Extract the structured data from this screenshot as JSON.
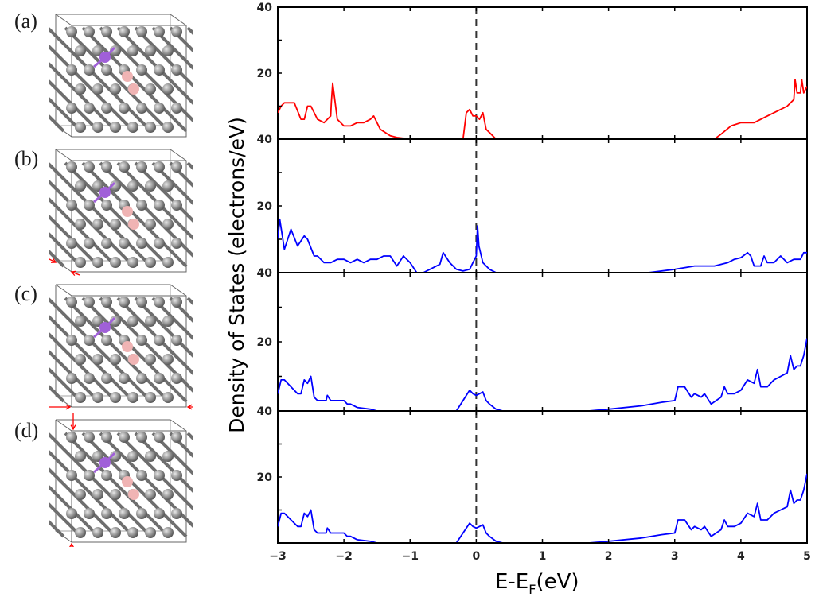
{
  "figure": {
    "panel_labels": [
      "(a)",
      "(b)",
      "(c)",
      "(d)"
    ],
    "colors": {
      "panel_a": "#ff0000",
      "panels_bcd": "#0000ff",
      "fermi_line": "#333333",
      "strain_arrow": "#ff0000",
      "atom_c": "#8c8c8c",
      "atom_purple": "#a060d8",
      "atom_pink": "#f0b4b4"
    }
  },
  "chart_data": {
    "type": "line",
    "xlabel_main": "E-E",
    "xlabel_sub": "F",
    "xlabel_unit": "(eV)",
    "ylabel": "Density of States (electrons/eV)",
    "xlim": [
      -3,
      5
    ],
    "ylim": [
      0,
      40
    ],
    "x_ticks": [
      "-3",
      "-2",
      "-1",
      "0",
      "1",
      "2",
      "3",
      "4",
      "5"
    ],
    "y_tick_labels": [
      "40",
      "20"
    ],
    "fermi_level": 0,
    "grid": false,
    "panels": [
      {
        "name": "(a)",
        "color": "#ff0000",
        "x": [
          -3,
          -2.95,
          -2.9,
          -2.85,
          -2.75,
          -2.65,
          -2.6,
          -2.55,
          -2.5,
          -2.4,
          -2.3,
          -2.25,
          -2.2,
          -2.19,
          -2.17,
          -2.1,
          -2.0,
          -1.9,
          -1.8,
          -1.7,
          -1.6,
          -1.55,
          -1.45,
          -1.3,
          -1.2,
          -1.0,
          -0.9,
          -0.8,
          -0.2,
          -0.15,
          -0.1,
          -0.05,
          0,
          0.05,
          0.1,
          0.15,
          0.2,
          0.3,
          0.4,
          1.0,
          2.0,
          3.0,
          3.6,
          3.7,
          3.85,
          4.0,
          4.2,
          4.4,
          4.6,
          4.7,
          4.8,
          4.82,
          4.85,
          4.9,
          4.92,
          4.95,
          5.0
        ],
        "y": [
          8,
          10,
          11,
          11,
          11,
          6,
          6,
          10,
          10,
          6,
          5,
          6,
          7,
          11,
          17,
          6,
          4,
          4,
          5,
          5,
          6,
          7,
          3,
          1,
          0.5,
          0,
          0,
          0,
          0,
          8,
          9,
          7,
          7,
          6,
          8,
          3,
          2,
          0,
          0,
          0,
          0,
          0,
          0,
          1.5,
          4,
          5,
          5,
          7,
          9,
          10,
          12,
          18,
          14,
          14,
          18,
          14,
          16
        ]
      },
      {
        "name": "(b)",
        "color": "#0000ff",
        "x": [
          -3,
          -2.97,
          -2.9,
          -2.8,
          -2.7,
          -2.6,
          -2.55,
          -2.45,
          -2.4,
          -2.3,
          -2.2,
          -2.1,
          -2.0,
          -1.9,
          -1.8,
          -1.7,
          -1.6,
          -1.5,
          -1.4,
          -1.3,
          -1.2,
          -1.1,
          -1.0,
          -0.9,
          -0.8,
          -0.7,
          -0.6,
          -0.55,
          -0.5,
          -0.4,
          -0.3,
          -0.2,
          -0.1,
          -0.05,
          0,
          0.02,
          0.04,
          0.1,
          0.2,
          0.3,
          0.5,
          1.0,
          1.8,
          2.0,
          2.2,
          2.6,
          3.0,
          3.3,
          3.6,
          3.8,
          3.9,
          4.0,
          4.1,
          4.15,
          4.2,
          4.3,
          4.35,
          4.4,
          4.5,
          4.6,
          4.7,
          4.8,
          4.9,
          4.95,
          5.0
        ],
        "y": [
          10,
          16,
          7,
          13,
          8,
          11,
          10,
          5,
          5,
          3,
          3,
          4,
          4,
          3,
          4,
          3,
          4,
          4,
          5,
          5,
          2,
          5,
          3,
          0,
          0,
          1,
          2,
          2.5,
          6,
          3,
          1,
          0.5,
          1,
          3,
          5,
          14,
          8,
          3,
          1,
          0,
          0,
          0,
          0,
          0,
          0,
          0,
          1,
          2,
          2,
          3,
          4,
          4.5,
          6,
          5,
          2,
          2,
          5,
          3,
          3,
          5,
          3,
          4,
          4,
          6,
          6
        ]
      },
      {
        "name": "(c)",
        "color": "#0000ff",
        "x": [
          -3,
          -2.95,
          -2.9,
          -2.8,
          -2.7,
          -2.65,
          -2.6,
          -2.55,
          -2.5,
          -2.45,
          -2.4,
          -2.3,
          -2.27,
          -2.25,
          -2.2,
          -2.0,
          -1.95,
          -1.9,
          -1.8,
          -1.6,
          -1.5,
          -1.0,
          -0.3,
          -0.2,
          -0.1,
          -0.05,
          0,
          0.05,
          0.1,
          0.15,
          0.2,
          0.3,
          0.4,
          1.0,
          1.7,
          2.0,
          2.5,
          2.8,
          3.0,
          3.05,
          3.1,
          3.15,
          3.25,
          3.3,
          3.4,
          3.45,
          3.55,
          3.7,
          3.75,
          3.8,
          3.9,
          4.0,
          4.1,
          4.2,
          4.25,
          4.3,
          4.4,
          4.5,
          4.6,
          4.7,
          4.75,
          4.8,
          4.85,
          4.9,
          4.95,
          5.0
        ],
        "y": [
          5,
          9,
          9,
          7,
          5,
          5,
          9,
          8,
          10,
          4,
          3,
          3,
          3,
          4.5,
          3,
          3,
          2,
          2,
          1,
          0.5,
          0,
          0,
          0,
          3,
          6,
          5,
          4.5,
          5,
          5.5,
          3,
          2,
          0.5,
          0,
          0,
          0,
          0.5,
          1.5,
          2.5,
          3,
          7,
          7,
          7,
          4,
          5,
          4,
          5,
          2,
          4,
          7,
          5,
          5,
          6,
          9,
          8,
          12,
          7,
          7,
          9,
          10,
          11,
          16,
          12,
          13,
          13,
          16,
          21
        ]
      },
      {
        "name": "(d)",
        "color": "#0000ff",
        "x": [
          -3,
          -2.95,
          -2.9,
          -2.8,
          -2.7,
          -2.65,
          -2.6,
          -2.55,
          -2.5,
          -2.45,
          -2.4,
          -2.3,
          -2.27,
          -2.25,
          -2.2,
          -2.0,
          -1.95,
          -1.9,
          -1.8,
          -1.6,
          -1.5,
          -1.0,
          -0.3,
          -0.2,
          -0.1,
          -0.05,
          0,
          0.05,
          0.1,
          0.15,
          0.2,
          0.3,
          0.4,
          1.0,
          1.7,
          2.0,
          2.5,
          2.8,
          3.0,
          3.05,
          3.1,
          3.15,
          3.25,
          3.3,
          3.4,
          3.45,
          3.55,
          3.7,
          3.75,
          3.8,
          3.9,
          4.0,
          4.1,
          4.2,
          4.25,
          4.3,
          4.4,
          4.5,
          4.6,
          4.7,
          4.75,
          4.8,
          4.85,
          4.9,
          4.95,
          5.0
        ],
        "y": [
          5,
          9,
          9,
          7,
          5,
          5,
          9,
          8,
          10,
          4,
          3,
          3,
          3,
          4.5,
          3,
          3,
          2,
          2,
          1,
          0.5,
          0,
          0,
          0,
          3,
          6,
          5,
          4.5,
          5,
          5.5,
          3,
          2,
          0.5,
          0,
          0,
          0,
          0.5,
          1.5,
          2.5,
          3,
          7,
          7,
          7,
          4,
          5,
          4,
          5,
          2,
          4,
          7,
          5,
          5,
          6,
          9,
          8,
          12,
          7,
          7,
          9,
          10,
          11,
          16,
          12,
          13,
          13,
          16,
          21
        ]
      }
    ]
  }
}
